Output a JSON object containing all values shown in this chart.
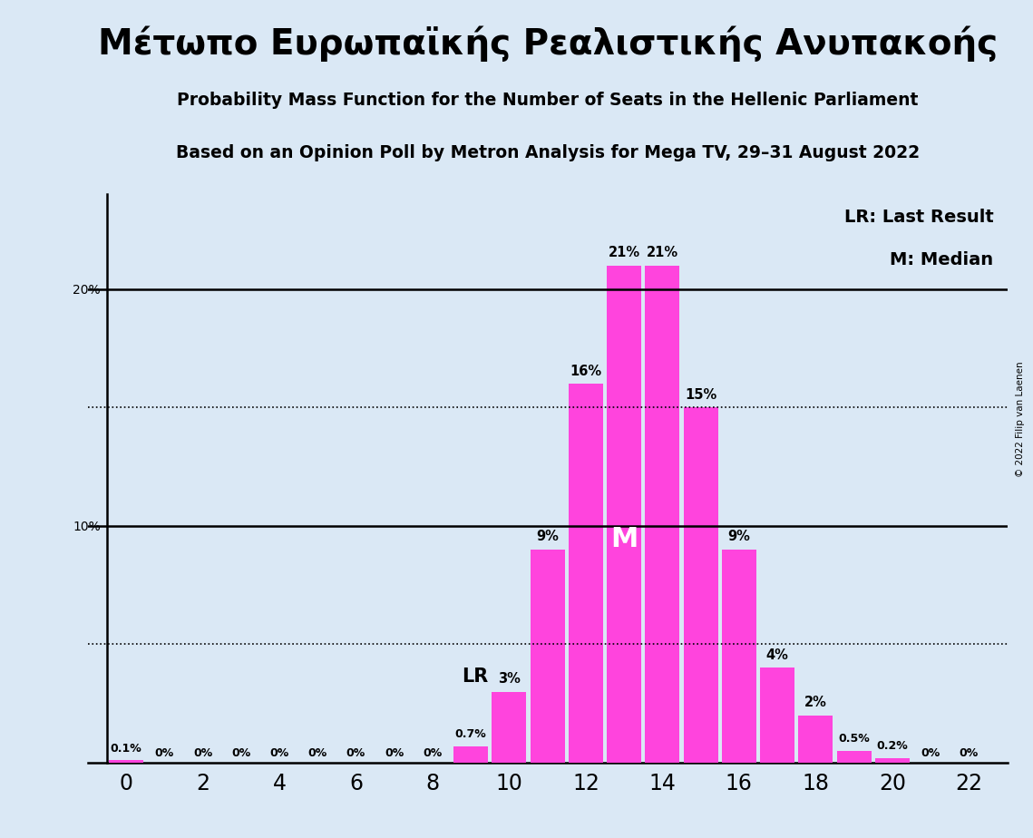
{
  "title_greek": "Μέτωπο Ευρωπαϊκής Ρεαλιστικής Ανυπακοής",
  "subtitle1": "Probability Mass Function for the Number of Seats in the Hellenic Parliament",
  "subtitle2": "Based on an Opinion Poll by Metron Analysis for Mega TV, 29–31 August 2022",
  "copyright": "© 2022 Filip van Laenen",
  "seats": [
    0,
    1,
    2,
    3,
    4,
    5,
    6,
    7,
    8,
    9,
    10,
    11,
    12,
    13,
    14,
    15,
    16,
    17,
    18,
    19,
    20,
    21,
    22
  ],
  "probabilities": [
    0.1,
    0.0,
    0.0,
    0.0,
    0.0,
    0.0,
    0.0,
    0.0,
    0.0,
    0.7,
    3.0,
    9.0,
    16.0,
    21.0,
    21.0,
    15.0,
    9.0,
    4.0,
    2.0,
    0.5,
    0.2,
    0.0,
    0.0
  ],
  "bar_color": "#FF44DD",
  "background_color": "#DAE8F5",
  "lr_seat": 10,
  "median_seat": 13,
  "horizontal_lines": [
    10.0,
    20.0
  ],
  "dotted_lines": [
    5.0,
    15.0
  ],
  "ylim": [
    0,
    24
  ],
  "legend_lr": "LR: Last Result",
  "legend_m": "M: Median",
  "lr_label": "LR",
  "m_label": "M",
  "bar_labels": [
    "0.1%",
    "0%",
    "0%",
    "0%",
    "0%",
    "0%",
    "0%",
    "0%",
    "0%",
    "0.7%",
    "3%",
    "9%",
    "16%",
    "21%",
    "21%",
    "15%",
    "9%",
    "4%",
    "2%",
    "0.5%",
    "0.2%",
    "0%",
    "0%"
  ]
}
